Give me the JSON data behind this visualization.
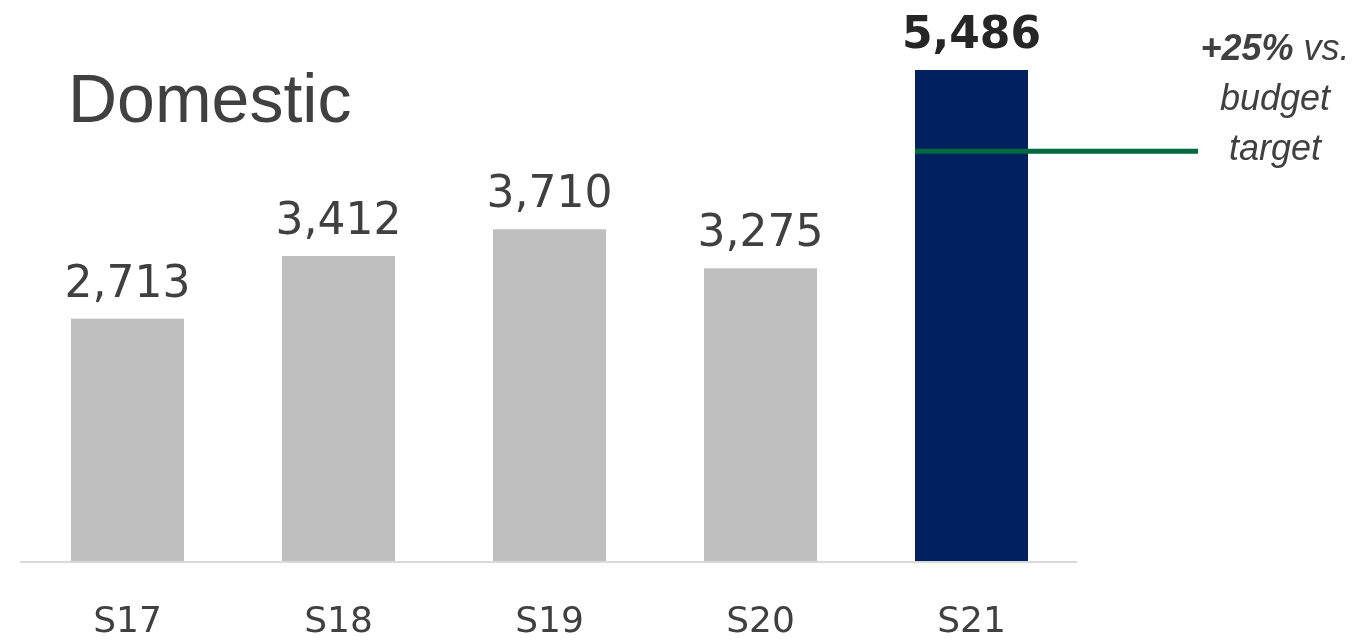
{
  "chart_data": {
    "type": "bar",
    "title": "Domestic",
    "categories": [
      "S17",
      "S18",
      "S19",
      "S20",
      "S21"
    ],
    "values": [
      2713,
      3412,
      3710,
      3275,
      5486
    ],
    "colors": [
      "#bfbfbf",
      "#bfbfbf",
      "#bfbfbf",
      "#bfbfbf",
      "#002060"
    ],
    "value_labels": [
      "2,713",
      "3,412",
      "3,710",
      "3,275",
      "5,486"
    ],
    "ref_lines": [
      {
        "axis": "y",
        "value": 4580,
        "label": "+25% vs. budget target",
        "color": "#00693e"
      }
    ]
  }
}
